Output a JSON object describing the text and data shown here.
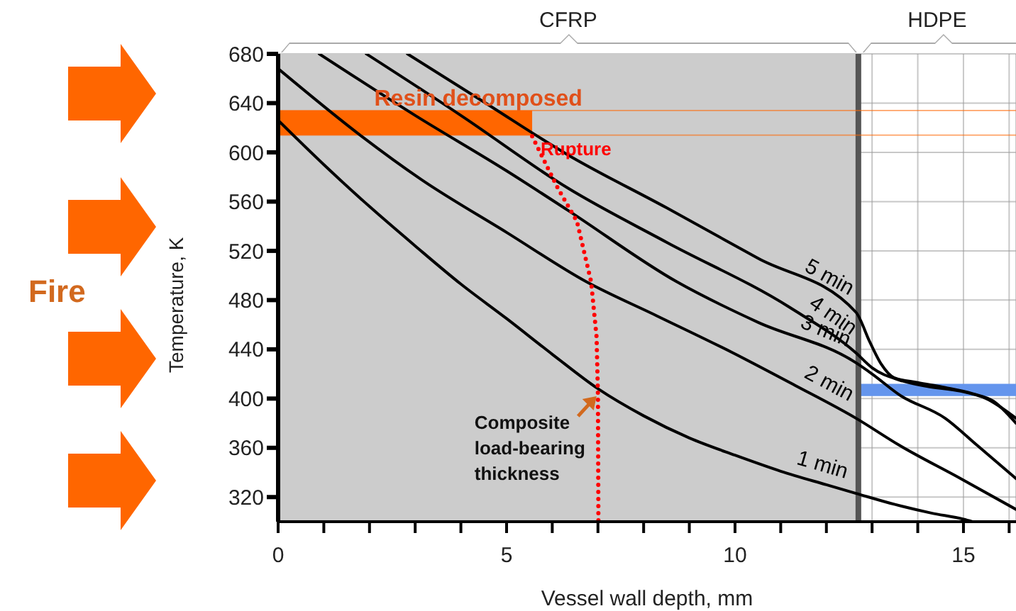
{
  "chart_data": {
    "type": "line",
    "xlabel": "Vessel wall depth, mm",
    "ylabel": "Temperature, K",
    "xlim": [
      0,
      16.15
    ],
    "xticks": [
      0,
      {
        "value": 1,
        "label": null
      },
      {
        "value": 2,
        "label": null
      },
      {
        "value": 3,
        "label": null
      },
      {
        "value": 4,
        "label": null
      },
      5,
      {
        "value": 6,
        "label": null
      },
      {
        "value": 7,
        "label": null
      },
      {
        "value": 8,
        "label": null
      },
      {
        "value": 9,
        "label": null
      },
      10,
      {
        "value": 11,
        "label": null
      },
      {
        "value": 12,
        "label": null
      },
      {
        "value": 13,
        "label": null
      },
      {
        "value": 14,
        "label": null
      },
      15,
      {
        "value": 16,
        "label": null
      }
    ],
    "ylim": [
      300,
      680
    ],
    "yticks": [
      320,
      360,
      400,
      440,
      480,
      520,
      560,
      600,
      640,
      680
    ],
    "grid": true,
    "marker": "none",
    "line_style": "solid",
    "series": [
      {
        "name": "1 min",
        "color": "#000000",
        "x": [
          0,
          1,
          2,
          3,
          4,
          5,
          6,
          7,
          8,
          9,
          10,
          11,
          12,
          12.65,
          13.5,
          14.3,
          15,
          15.2
        ],
        "values": [
          626,
          590,
          556,
          524,
          493,
          465,
          436,
          408,
          386,
          368,
          354,
          341,
          330,
          323,
          314,
          307,
          302,
          300
        ]
      },
      {
        "name": "2 min",
        "color": "#000000",
        "x": [
          0,
          1.83,
          3.13,
          5,
          6.74,
          8.3,
          9.96,
          11.3,
          12.65,
          13.6,
          14.94,
          16.15
        ],
        "values": [
          668,
          613,
          578,
          535,
          495,
          467,
          437,
          411,
          384,
          362,
          335,
          310
        ]
      },
      {
        "name": "3 min",
        "color": "#000000",
        "x": [
          0.9,
          3,
          5,
          6.34,
          8.72,
          10.5,
          12.65,
          13,
          13.6,
          14.6,
          15.3,
          16.15
        ],
        "values": [
          680,
          630,
          585,
          553,
          495,
          462,
          429,
          420,
          403,
          384,
          362,
          335
        ]
      },
      {
        "name": "4 min",
        "color": "#000000",
        "x": [
          1.93,
          4,
          6.34,
          8.5,
          11.2,
          12.65,
          13,
          13.6,
          14.2,
          14.94,
          15.5,
          16.15
        ],
        "values": [
          680,
          630,
          571,
          527,
          474,
          437,
          425,
          415,
          410,
          406,
          400,
          384
        ]
      },
      {
        "name": "5 min",
        "color": "#000000",
        "x": [
          2.83,
          4.5,
          6.34,
          8.5,
          10.5,
          12.65,
          12.95,
          13.2,
          13.48,
          14,
          14.6,
          15.2,
          15.65,
          16.15
        ],
        "values": [
          680,
          641,
          598,
          555,
          514,
          470,
          446,
          428,
          417,
          413,
          409,
          404,
          398,
          380
        ]
      },
      {
        "name": "Rupture",
        "color": "#ff0000",
        "line_style": "dotted",
        "x": [
          5.56,
          6.12,
          6.54,
          6.85,
          6.97,
          7.0,
          7.01
        ],
        "values": [
          613,
          571,
          544,
          495,
          450,
          403,
          300
        ]
      }
    ],
    "bands": [
      {
        "axis": "x",
        "from": 0,
        "to": 12.7,
        "color": "#cccccc"
      },
      {
        "axis": "y",
        "from": 614,
        "to": 634,
        "label": "Resin decomposed",
        "color": "#ff6600"
      },
      {
        "axis": "y",
        "from": 402,
        "to": 412,
        "color": "#6495ed"
      }
    ],
    "ref_lines": [
      {
        "axis": "x",
        "value": 12.7,
        "color": "#555555"
      },
      {
        "axis": "y",
        "value": 614,
        "color": "#ff6600"
      },
      {
        "axis": "y",
        "value": 634,
        "color": "#ff6600"
      }
    ],
    "annotations": [
      "Fire",
      "CFRP",
      "HDPE",
      {
        "text": "Composite load-bearing thickness",
        "x": 7.0,
        "y": 403
      }
    ]
  }
}
